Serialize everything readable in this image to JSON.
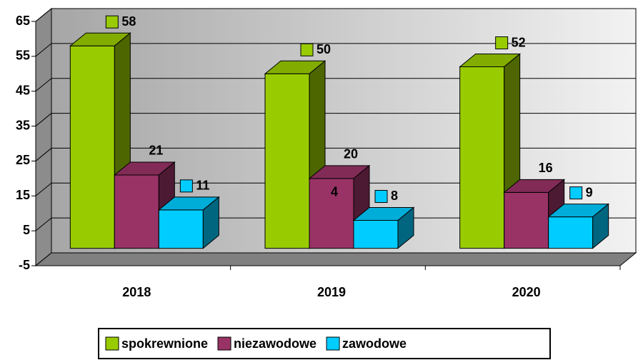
{
  "chart_data": {
    "type": "bar3d",
    "categories": [
      "2018",
      "2019",
      "2020"
    ],
    "series": [
      {
        "name": "spokrewnione",
        "color": "#99cc00",
        "values": [
          58,
          50,
          52
        ]
      },
      {
        "name": "niezawodowe",
        "color": "#993366",
        "values": [
          21,
          20,
          16
        ]
      },
      {
        "name": "zawodowe",
        "color": "#00ccff",
        "values": [
          11,
          8,
          9
        ]
      }
    ],
    "ylim": [
      -5,
      65
    ],
    "yticks": [
      -5,
      5,
      15,
      25,
      35,
      45,
      55,
      65
    ],
    "grid": true,
    "legend": "bottom",
    "annotations": [
      "4"
    ]
  }
}
